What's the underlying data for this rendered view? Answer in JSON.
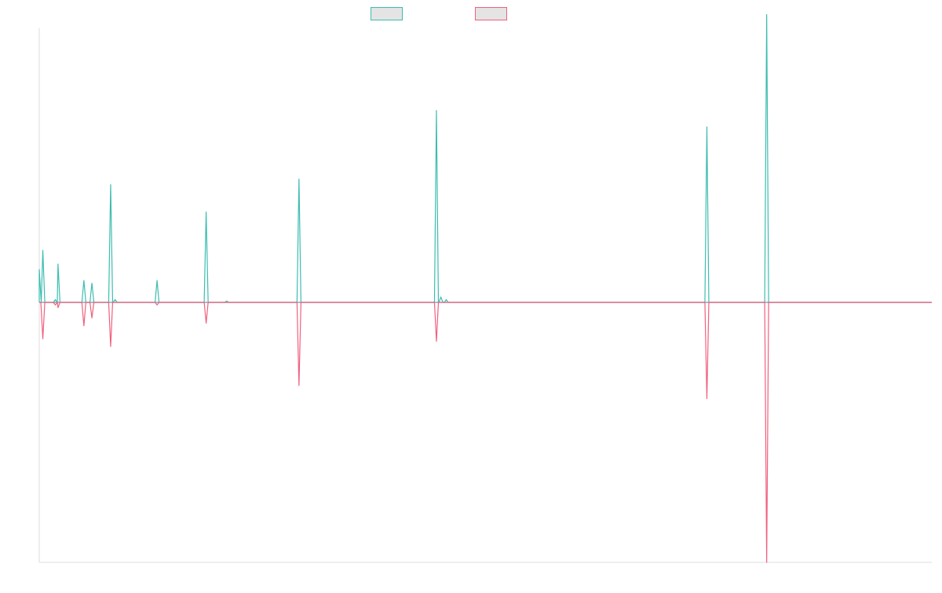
{
  "chart_data": {
    "type": "line",
    "title": "",
    "xlabel": "",
    "ylabel": "",
    "grid": false,
    "legend_position": "top-center",
    "ylim": [
      -100,
      100
    ],
    "xlim": [
      0,
      1000
    ],
    "zero_line_color": "#7d8fa8",
    "series": [
      {
        "color": "#3dbdb0",
        "legend_fill": "#e4e4e4",
        "spikes": [
          [
            0,
            12
          ],
          [
            4,
            19
          ],
          [
            18,
            1
          ],
          [
            21,
            14
          ],
          [
            50,
            8
          ],
          [
            59,
            7
          ],
          [
            80,
            43
          ],
          [
            85,
            1
          ],
          [
            132,
            8
          ],
          [
            187,
            33
          ],
          [
            210,
            0.5
          ],
          [
            291,
            45
          ],
          [
            445,
            70
          ],
          [
            450,
            2
          ],
          [
            456,
            1
          ],
          [
            748,
            64
          ],
          [
            815,
            105
          ]
        ]
      },
      {
        "color": "#f0607e",
        "legend_fill": "#e4e4e4",
        "spikes": [
          [
            4,
            -14
          ],
          [
            18,
            -1
          ],
          [
            21,
            -2
          ],
          [
            50,
            -9
          ],
          [
            59,
            -6
          ],
          [
            80,
            -17
          ],
          [
            132,
            -1
          ],
          [
            187,
            -8
          ],
          [
            291,
            -32
          ],
          [
            445,
            -15
          ],
          [
            748,
            -37
          ],
          [
            815,
            -100
          ]
        ]
      }
    ]
  }
}
